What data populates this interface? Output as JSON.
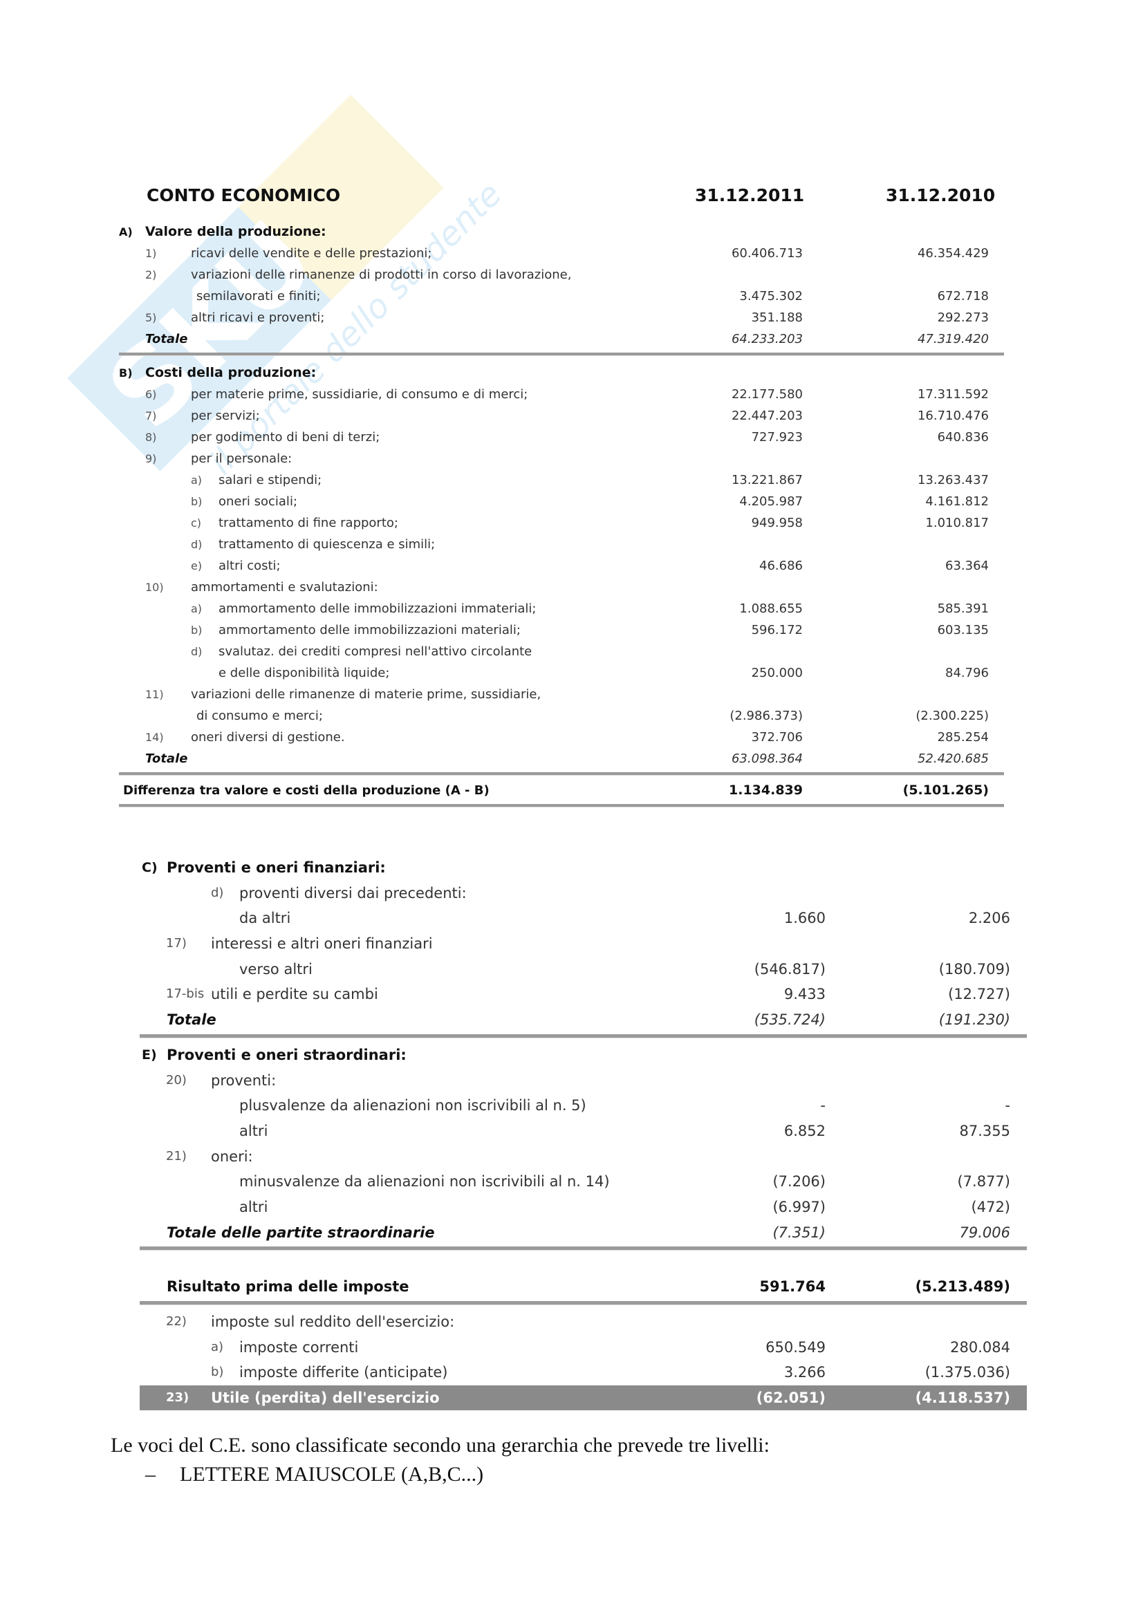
{
  "watermark": {
    "brand": "Skuola.net",
    "tagline": "il portale dello studente"
  },
  "header": {
    "title": "CONTO ECONOMICO",
    "col1": "31.12.2011",
    "col2": "31.12.2010"
  },
  "table1": {
    "rows": [
      {
        "kind": "section",
        "num": "A)",
        "label": "Valore della produzione:",
        "v1": "",
        "v2": ""
      },
      {
        "kind": "item",
        "num": "1)",
        "label": "ricavi delle vendite e delle prestazioni;",
        "v1": "60.406.713",
        "v2": "46.354.429"
      },
      {
        "kind": "item",
        "num": "2)",
        "label": "variazioni delle rimanenze di prodotti in corso di lavorazione,",
        "v1": "",
        "v2": ""
      },
      {
        "kind": "cont",
        "num": "",
        "label": "semilavorati e finiti;",
        "v1": "3.475.302",
        "v2": "672.718"
      },
      {
        "kind": "item",
        "num": "5)",
        "label": "altri ricavi e proventi;",
        "v1": "351.188",
        "v2": "292.273"
      },
      {
        "kind": "total",
        "num": "",
        "label": "Totale",
        "v1": "64.233.203",
        "v2": "47.319.420"
      },
      {
        "kind": "section",
        "num": "B)",
        "label": "Costi della produzione:",
        "v1": "",
        "v2": ""
      },
      {
        "kind": "item",
        "num": "6)",
        "label": "per materie prime, sussidiarie, di consumo e di merci;",
        "v1": "22.177.580",
        "v2": "17.311.592"
      },
      {
        "kind": "item",
        "num": "7)",
        "label": "per servizi;",
        "v1": "22.447.203",
        "v2": "16.710.476"
      },
      {
        "kind": "item",
        "num": "8)",
        "label": "per godimento di beni di terzi;",
        "v1": "727.923",
        "v2": "640.836"
      },
      {
        "kind": "item",
        "num": "9)",
        "label": "per il personale:",
        "v1": "",
        "v2": ""
      },
      {
        "kind": "sub",
        "num": "a)",
        "label": "salari e stipendi;",
        "v1": "13.221.867",
        "v2": "13.263.437"
      },
      {
        "kind": "sub",
        "num": "b)",
        "label": "oneri sociali;",
        "v1": "4.205.987",
        "v2": "4.161.812"
      },
      {
        "kind": "sub",
        "num": "c)",
        "label": "trattamento di fine rapporto;",
        "v1": "949.958",
        "v2": "1.010.817"
      },
      {
        "kind": "sub",
        "num": "d)",
        "label": "trattamento di quiescenza e simili;",
        "v1": "",
        "v2": ""
      },
      {
        "kind": "sub",
        "num": "e)",
        "label": "altri costi;",
        "v1": "46.686",
        "v2": "63.364"
      },
      {
        "kind": "item",
        "num": "10)",
        "label": "ammortamenti e svalutazioni:",
        "v1": "",
        "v2": ""
      },
      {
        "kind": "sub",
        "num": "a)",
        "label": "ammortamento delle immobilizzazioni immateriali;",
        "v1": "1.088.655",
        "v2": "585.391"
      },
      {
        "kind": "sub",
        "num": "b)",
        "label": "ammortamento delle immobilizzazioni materiali;",
        "v1": "596.172",
        "v2": "603.135"
      },
      {
        "kind": "sub",
        "num": "d)",
        "label": "svalutaz. dei crediti compresi nell'attivo circolante",
        "v1": "",
        "v2": ""
      },
      {
        "kind": "subcont",
        "num": "",
        "label": "e delle disponibilità liquide;",
        "v1": "250.000",
        "v2": "84.796"
      },
      {
        "kind": "item",
        "num": "11)",
        "label": "variazioni delle rimanenze di materie prime, sussidiarie,",
        "v1": "",
        "v2": ""
      },
      {
        "kind": "cont",
        "num": "",
        "label": "di consumo e merci;",
        "v1": "(2.986.373)",
        "v2": "(2.300.225)"
      },
      {
        "kind": "item",
        "num": "14)",
        "label": "oneri diversi di gestione.",
        "v1": "372.706",
        "v2": "285.254"
      },
      {
        "kind": "total",
        "num": "",
        "label": "Totale",
        "v1": "63.098.364",
        "v2": "52.420.685"
      },
      {
        "kind": "result",
        "num": "",
        "label": "Differenza tra valore e costi della produzione (A - B)",
        "v1": "1.134.839",
        "v2": "(5.101.265)"
      }
    ]
  },
  "table2": {
    "rows": [
      {
        "kind": "section",
        "num": "C)",
        "label": "Proventi e oneri finanziari:",
        "v1": "",
        "v2": ""
      },
      {
        "kind": "sub",
        "num": "d)",
        "label": "proventi diversi dai precedenti:",
        "v1": "",
        "v2": ""
      },
      {
        "kind": "subcont",
        "num": "",
        "label": "da altri",
        "v1": "1.660",
        "v2": "2.206"
      },
      {
        "kind": "item",
        "num": "17)",
        "label": "interessi e altri oneri finanziari",
        "v1": "",
        "v2": ""
      },
      {
        "kind": "subcont",
        "num": "",
        "label": "verso altri",
        "v1": "(546.817)",
        "v2": "(180.709)"
      },
      {
        "kind": "item",
        "num": "17-bis",
        "label": "utili e perdite su cambi",
        "v1": "9.433",
        "v2": "(12.727)"
      },
      {
        "kind": "total",
        "num": "",
        "label": "Totale",
        "v1": "(535.724)",
        "v2": "(191.230)"
      },
      {
        "kind": "section",
        "num": "E)",
        "label": "Proventi e oneri straordinari:",
        "v1": "",
        "v2": ""
      },
      {
        "kind": "item",
        "num": "20)",
        "label": "proventi:",
        "v1": "",
        "v2": ""
      },
      {
        "kind": "subcont",
        "num": "",
        "label": "plusvalenze da alienazioni non iscrivibili al n. 5)",
        "v1": "-",
        "v2": "-"
      },
      {
        "kind": "subcont",
        "num": "",
        "label": "altri",
        "v1": "6.852",
        "v2": "87.355"
      },
      {
        "kind": "item",
        "num": "21)",
        "label": "oneri:",
        "v1": "",
        "v2": ""
      },
      {
        "kind": "subcont",
        "num": "",
        "label": "minusvalenze da alienazioni non iscrivibili al n. 14)",
        "v1": "(7.206)",
        "v2": "(7.877)"
      },
      {
        "kind": "subcont",
        "num": "",
        "label": "altri",
        "v1": "(6.997)",
        "v2": "(472)"
      },
      {
        "kind": "total",
        "num": "",
        "label": "Totale delle partite straordinarie",
        "v1": "(7.351)",
        "v2": "79.006"
      },
      {
        "kind": "result",
        "num": "",
        "label": "Risultato prima delle imposte",
        "v1": "591.764",
        "v2": "(5.213.489)"
      },
      {
        "kind": "item",
        "num": "22)",
        "label": "imposte sul reddito dell'esercizio:",
        "v1": "",
        "v2": ""
      },
      {
        "kind": "sub",
        "num": "a)",
        "label": "imposte correnti",
        "v1": "650.549",
        "v2": "280.084"
      },
      {
        "kind": "sub",
        "num": "b)",
        "label": "imposte differite (anticipate)",
        "v1": "3.266",
        "v2": "(1.375.036)"
      },
      {
        "kind": "band",
        "num": "23)",
        "label": "Utile (perdita) dell'esercizio",
        "v1": "(62.051)",
        "v2": "(4.118.537)"
      }
    ]
  },
  "text": {
    "paragraph": "Le voci del C.E. sono classificate secondo una gerarchia che prevede tre livelli:",
    "bullet_marker": "–",
    "bullet": "LETTERE MAIUSCOLE (A,B,C...)"
  }
}
